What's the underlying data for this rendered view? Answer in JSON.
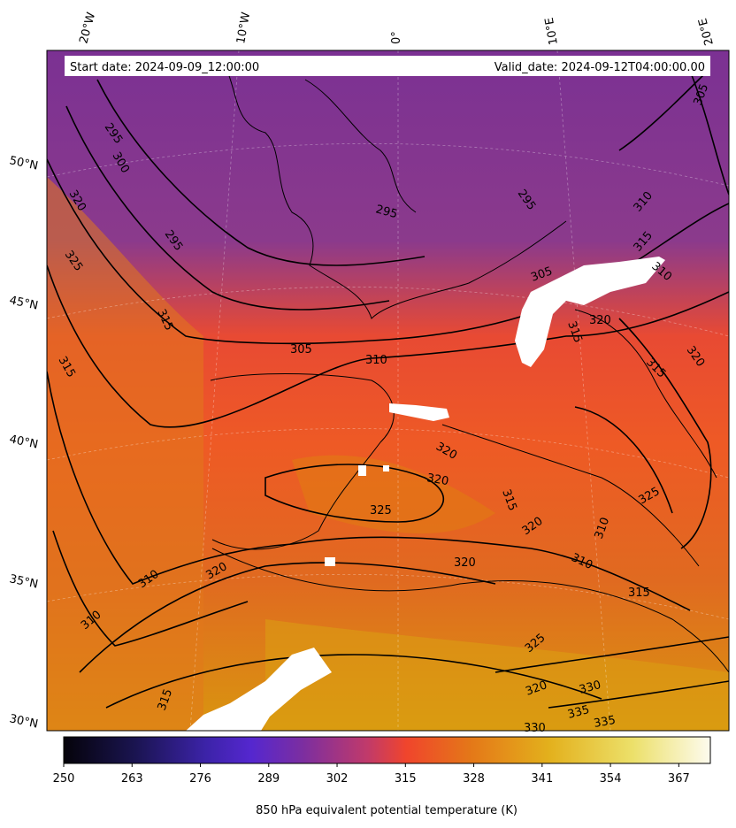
{
  "header": {
    "start_date": "Start date: 2024-09-09_12:00:00",
    "valid_date": "Valid_date: 2024-09-12T04:00:00.00"
  },
  "map": {
    "projection": "lambert-conformal",
    "lon_labels": [
      "20°W",
      "10°W",
      "0°",
      "10°E",
      "20°E"
    ],
    "lat_labels": [
      "50°N",
      "45°N",
      "40°N",
      "35°N",
      "30°N"
    ],
    "gridlines": true,
    "field": "850 hPa equivalent potential temperature",
    "contour_labels": [
      "295",
      "300",
      "295",
      "295",
      "320",
      "325",
      "315",
      "315",
      "305",
      "310",
      "295",
      "305",
      "310",
      "315",
      "310",
      "315",
      "320",
      "315",
      "320",
      "320",
      "325",
      "320",
      "315",
      "325",
      "320",
      "310",
      "320",
      "310",
      "310",
      "320",
      "315",
      "325",
      "320",
      "330",
      "335",
      "330",
      "335",
      "310",
      "315",
      "305"
    ]
  },
  "colorbar": {
    "label": "850 hPa equivalent potential temperature (K)",
    "ticks": [
      "250",
      "263",
      "276",
      "289",
      "302",
      "315",
      "328",
      "341",
      "354",
      "367"
    ],
    "range": [
      250,
      373
    ],
    "colormap": "CMRmap-like",
    "colors": [
      "#05030a",
      "#2a1b6e",
      "#4a2ad0",
      "#7a2f9a",
      "#b13a78",
      "#f0452c",
      "#e07b10",
      "#e5b020",
      "#efe070",
      "#fdfbee"
    ]
  }
}
